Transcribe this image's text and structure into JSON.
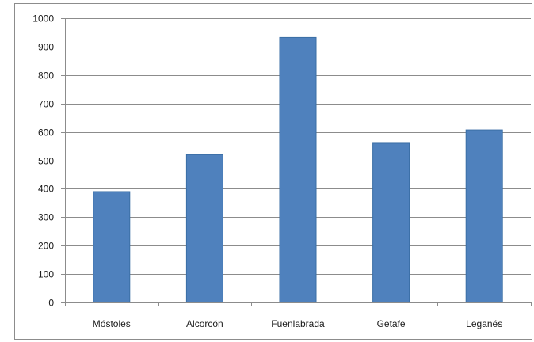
{
  "chart_data": {
    "type": "bar",
    "title": "",
    "xlabel": "",
    "ylabel": "",
    "categories": [
      "Móstoles",
      "Alcorcón",
      "Fuenlabrada",
      "Getafe",
      "Leganés"
    ],
    "series": [
      {
        "values": [
          390,
          520,
          932,
          560,
          607
        ]
      }
    ],
    "ylim": [
      0,
      1000
    ],
    "yticks": [
      {
        "value": 0,
        "label": "0"
      },
      {
        "value": 100,
        "label": "100"
      },
      {
        "value": 200,
        "label": "200"
      },
      {
        "value": 300,
        "label": "300"
      },
      {
        "value": 400,
        "label": "400"
      },
      {
        "value": 500,
        "label": "500"
      },
      {
        "value": 600,
        "label": "600"
      },
      {
        "value": 700,
        "label": "700"
      },
      {
        "value": 800,
        "label": "800"
      },
      {
        "value": 900,
        "label": "900"
      },
      {
        "value": 1000,
        "label": "1000"
      }
    ],
    "grid": true,
    "bar_color": "#4F81BD",
    "bar_edge_color": "#3A6EA5",
    "grid_color": "#8c8c8c",
    "legend": "none"
  }
}
